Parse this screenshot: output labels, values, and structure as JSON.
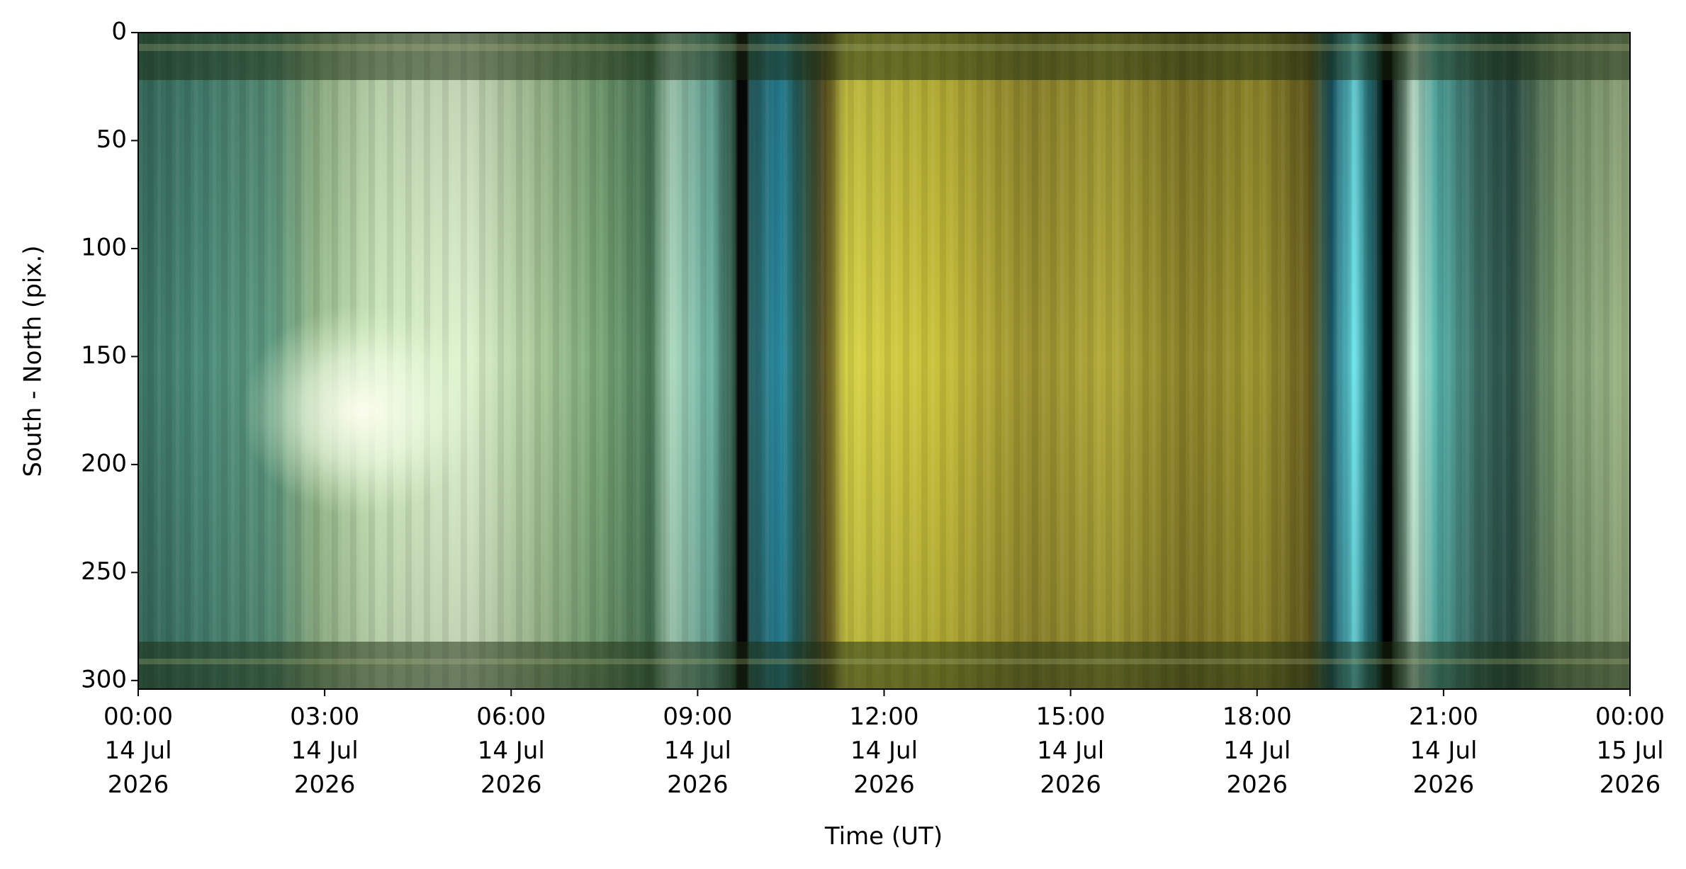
{
  "chart_data": {
    "type": "image",
    "x_label": "Time (UT)",
    "y_label": "South - North (pix.)",
    "xlim": [
      "2026-07-14 00:00",
      "2026-07-15 00:00"
    ],
    "xticks": [
      {
        "value": "2026-07-14 00:00",
        "label": "00:00\n14 Jul\n2026"
      },
      {
        "value": "2026-07-14 03:00",
        "label": "03:00\n14 Jul\n2026"
      },
      {
        "value": "2026-07-14 06:00",
        "label": "06:00\n14 Jul\n2026"
      },
      {
        "value": "2026-07-14 09:00",
        "label": "09:00\n14 Jul\n2026"
      },
      {
        "value": "2026-07-14 12:00",
        "label": "12:00\n14 Jul\n2026"
      },
      {
        "value": "2026-07-14 15:00",
        "label": "15:00\n14 Jul\n2026"
      },
      {
        "value": "2026-07-14 18:00",
        "label": "18:00\n14 Jul\n2026"
      },
      {
        "value": "2026-07-14 21:00",
        "label": "21:00\n14 Jul\n2026"
      },
      {
        "value": "2026-07-15 00:00",
        "label": "00:00\n15 Jul\n2026"
      }
    ],
    "ylim": [
      304,
      0
    ],
    "yticks": [
      0,
      50,
      100,
      150,
      200,
      250,
      300
    ]
  }
}
